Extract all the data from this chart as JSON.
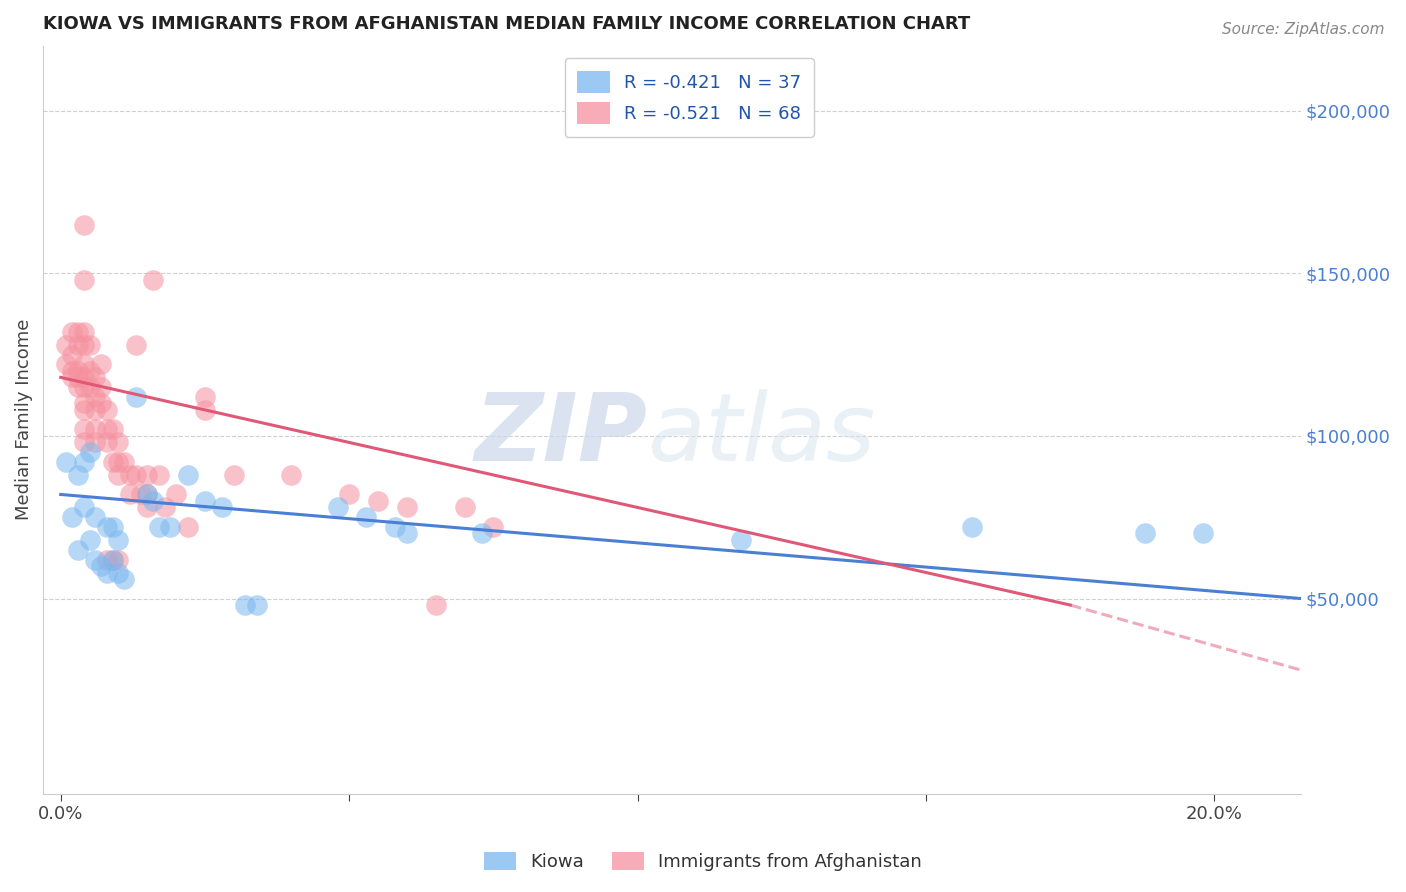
{
  "title": "KIOWA VS IMMIGRANTS FROM AFGHANISTAN MEDIAN FAMILY INCOME CORRELATION CHART",
  "source": "Source: ZipAtlas.com",
  "ylabel_label": "Median Family Income",
  "x_ticks": [
    0.0,
    0.05,
    0.1,
    0.15,
    0.2
  ],
  "ylim": [
    -10000,
    220000
  ],
  "xlim": [
    -0.003,
    0.215
  ],
  "y_ticks": [
    50000,
    100000,
    150000,
    200000
  ],
  "background_color": "#ffffff",
  "grid_color": "#d0d0d0",
  "watermark_zip": "ZIP",
  "watermark_atlas": "atlas",
  "legend_blue_label": "R = -0.421   N = 37",
  "legend_pink_label": "R = -0.521   N = 68",
  "blue_color": "#7ab8f0",
  "pink_color": "#f5919f",
  "blue_line_color": "#4a7fd4",
  "pink_line_color": "#e05878",
  "blue_scatter": [
    [
      0.001,
      92000
    ],
    [
      0.002,
      75000
    ],
    [
      0.003,
      88000
    ],
    [
      0.003,
      65000
    ],
    [
      0.004,
      78000
    ],
    [
      0.004,
      92000
    ],
    [
      0.005,
      68000
    ],
    [
      0.005,
      95000
    ],
    [
      0.006,
      75000
    ],
    [
      0.006,
      62000
    ],
    [
      0.007,
      60000
    ],
    [
      0.008,
      58000
    ],
    [
      0.008,
      72000
    ],
    [
      0.009,
      72000
    ],
    [
      0.009,
      62000
    ],
    [
      0.01,
      68000
    ],
    [
      0.01,
      58000
    ],
    [
      0.011,
      56000
    ],
    [
      0.013,
      112000
    ],
    [
      0.015,
      82000
    ],
    [
      0.016,
      80000
    ],
    [
      0.017,
      72000
    ],
    [
      0.019,
      72000
    ],
    [
      0.022,
      88000
    ],
    [
      0.025,
      80000
    ],
    [
      0.028,
      78000
    ],
    [
      0.032,
      48000
    ],
    [
      0.034,
      48000
    ],
    [
      0.048,
      78000
    ],
    [
      0.053,
      75000
    ],
    [
      0.058,
      72000
    ],
    [
      0.06,
      70000
    ],
    [
      0.073,
      70000
    ],
    [
      0.118,
      68000
    ],
    [
      0.158,
      72000
    ],
    [
      0.188,
      70000
    ],
    [
      0.198,
      70000
    ]
  ],
  "pink_scatter": [
    [
      0.001,
      128000
    ],
    [
      0.001,
      122000
    ],
    [
      0.002,
      132000
    ],
    [
      0.002,
      125000
    ],
    [
      0.002,
      120000
    ],
    [
      0.002,
      118000
    ],
    [
      0.003,
      132000
    ],
    [
      0.003,
      128000
    ],
    [
      0.003,
      120000
    ],
    [
      0.003,
      118000
    ],
    [
      0.003,
      115000
    ],
    [
      0.004,
      165000
    ],
    [
      0.004,
      148000
    ],
    [
      0.004,
      132000
    ],
    [
      0.004,
      128000
    ],
    [
      0.004,
      122000
    ],
    [
      0.004,
      118000
    ],
    [
      0.004,
      115000
    ],
    [
      0.004,
      110000
    ],
    [
      0.004,
      108000
    ],
    [
      0.004,
      102000
    ],
    [
      0.004,
      98000
    ],
    [
      0.005,
      128000
    ],
    [
      0.005,
      120000
    ],
    [
      0.005,
      115000
    ],
    [
      0.006,
      118000
    ],
    [
      0.006,
      112000
    ],
    [
      0.006,
      108000
    ],
    [
      0.006,
      102000
    ],
    [
      0.006,
      98000
    ],
    [
      0.007,
      122000
    ],
    [
      0.007,
      115000
    ],
    [
      0.007,
      110000
    ],
    [
      0.008,
      108000
    ],
    [
      0.008,
      102000
    ],
    [
      0.008,
      98000
    ],
    [
      0.008,
      62000
    ],
    [
      0.009,
      102000
    ],
    [
      0.009,
      92000
    ],
    [
      0.009,
      62000
    ],
    [
      0.01,
      98000
    ],
    [
      0.01,
      92000
    ],
    [
      0.01,
      88000
    ],
    [
      0.01,
      62000
    ],
    [
      0.011,
      92000
    ],
    [
      0.012,
      88000
    ],
    [
      0.012,
      82000
    ],
    [
      0.013,
      128000
    ],
    [
      0.013,
      88000
    ],
    [
      0.014,
      82000
    ],
    [
      0.015,
      88000
    ],
    [
      0.015,
      82000
    ],
    [
      0.015,
      78000
    ],
    [
      0.016,
      148000
    ],
    [
      0.017,
      88000
    ],
    [
      0.018,
      78000
    ],
    [
      0.02,
      82000
    ],
    [
      0.022,
      72000
    ],
    [
      0.025,
      112000
    ],
    [
      0.025,
      108000
    ],
    [
      0.03,
      88000
    ],
    [
      0.04,
      88000
    ],
    [
      0.05,
      82000
    ],
    [
      0.055,
      80000
    ],
    [
      0.06,
      78000
    ],
    [
      0.065,
      48000
    ],
    [
      0.07,
      78000
    ],
    [
      0.075,
      72000
    ]
  ],
  "blue_line": {
    "x0": 0.0,
    "y0": 82000,
    "x1": 0.215,
    "y1": 50000
  },
  "pink_line_solid": {
    "x0": 0.0,
    "y0": 118000,
    "x1": 0.175,
    "y1": 48000
  },
  "pink_line_dashed": {
    "x0": 0.175,
    "y0": 48000,
    "x1": 0.215,
    "y1": 28000
  },
  "bottom_legend_kiowa": "Kiowa",
  "bottom_legend_afg": "Immigrants from Afghanistan"
}
